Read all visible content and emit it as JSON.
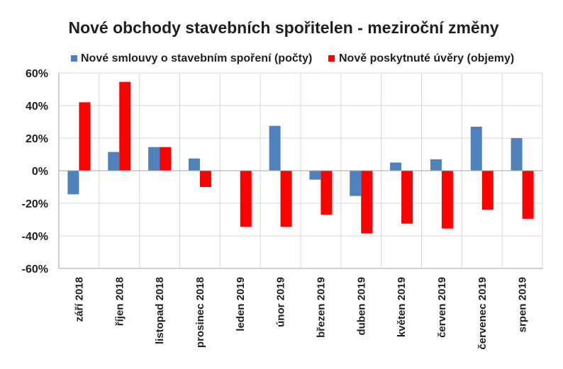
{
  "chart_data": {
    "type": "bar",
    "title": "Nové obchody stavebních spořitelen - meziroční změny",
    "categories": [
      "září 2018",
      "říjen 2018",
      "listopad 2018",
      "prosinec 2018",
      "leden 2019",
      "únor 2019",
      "březen 2019",
      "duben 2019",
      "květen 2019",
      "červen 2019",
      "červenec 2019",
      "srpen 2019"
    ],
    "series": [
      {
        "name": "Nové smlouvy o stavebním spoření (počty)",
        "color": "#4f81bd",
        "values": [
          -14.5,
          11.5,
          14.5,
          7.5,
          0,
          27.5,
          -5.5,
          -15.5,
          5,
          7,
          27,
          20
        ]
      },
      {
        "name": "Nově poskytnuté úvěry (objemy)",
        "color": "#ff0000",
        "values": [
          42,
          54.5,
          14.5,
          -10,
          -34.5,
          -34.5,
          -27,
          -38.5,
          -32.5,
          -35.5,
          -24,
          -29.5
        ]
      }
    ],
    "ylim": [
      -60,
      60
    ],
    "ytick_step": 20,
    "ytick_labels": [
      "60%",
      "40%",
      "20%",
      "0%",
      "-20%",
      "-40%",
      "-60%"
    ],
    "grid": true,
    "legend_position": "top"
  }
}
